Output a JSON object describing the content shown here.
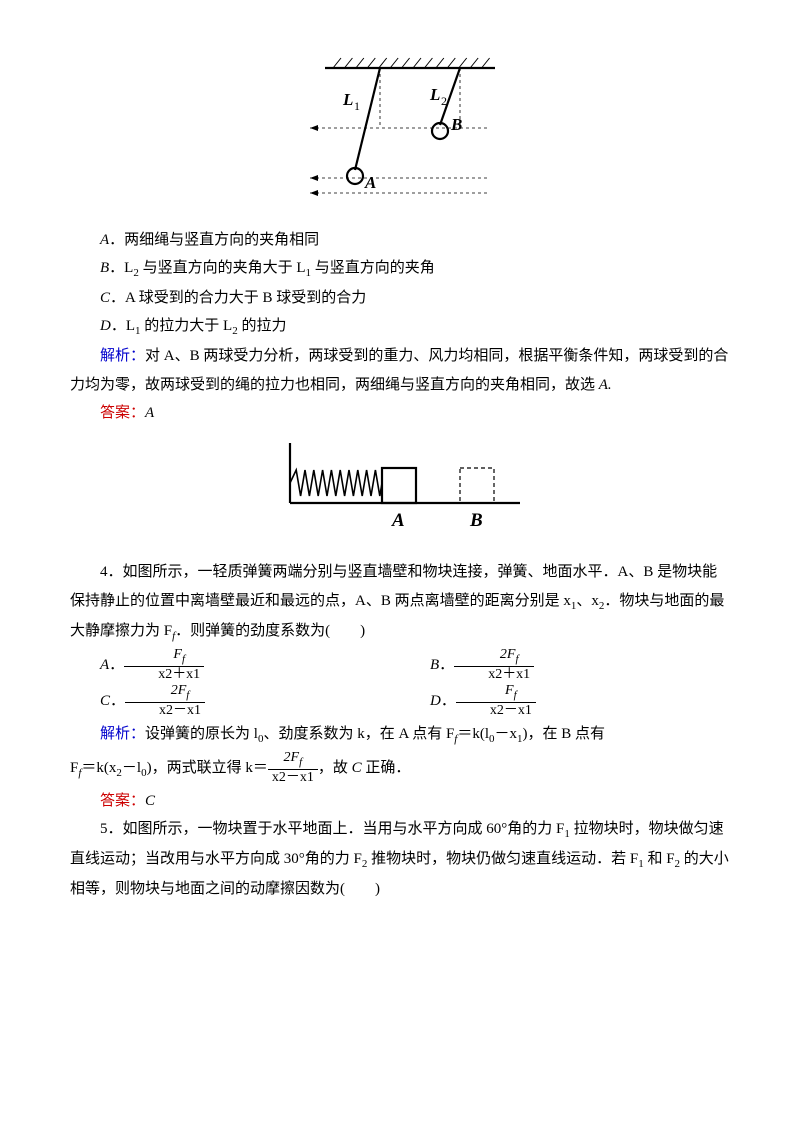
{
  "fig1": {
    "L1_label": "L",
    "L1_sub": "1",
    "L2_label": "L",
    "L2_sub": "2",
    "A_label": "A",
    "B_label": "B",
    "stroke": "#000000",
    "bold_stroke_width": 2.2,
    "thin_stroke_width": 1,
    "hatch_count": 14
  },
  "q3": {
    "optA": "．两细绳与竖直方向的夹角相同",
    "optB_p1": "．L",
    "optB_p2": " 与竖直方向的夹角大于 L",
    "optB_p3": " 与竖直方向的夹角",
    "optC": "．A 球受到的合力大于 B 球受到的合力",
    "optD_p1": "．L",
    "optD_p2": " 的拉力大于 L",
    "optD_p3": " 的拉力",
    "analysis_label": "解析：",
    "analysis_text": "对 A、B 两球受力分析，两球受到的重力、风力均相同，根据平衡条件知，两球受到的合力均为零，故两球受到的绳的拉力也相同，两细绳与竖直方向的夹角相同，故选 ",
    "analysis_ans": "A.",
    "answer_label": "答案：",
    "answer_value": "A",
    "italic_A": "A",
    "italic_B": "B",
    "italic_C": "C",
    "italic_D": "D",
    "sub1": "1",
    "sub2": "2"
  },
  "fig2": {
    "A_label": "A",
    "B_label": "B",
    "stroke": "#000000",
    "line_width": 2.2,
    "coil_count": 10
  },
  "q4": {
    "stem_p1": "4．如图所示，一轻质弹簧两端分别与竖直墙壁和物块连接，弹簧、地面水平．A、B 是物块能保持静止的位置中离墙壁最近和最远的点，A、B 两点离墙壁的距离分别是 x",
    "stem_p2": "、x",
    "stem_p3": "．物块与地面的最大静摩擦力为 F",
    "stem_p4": "．则弹簧的劲度系数为(　　)",
    "sub1": "1",
    "sub2": "2",
    "subf": "f",
    "optA_label": "A",
    "optA_num": "Ff",
    "optA_den": "x2＋x1",
    "optB_label": "B",
    "optB_num": "2Ff",
    "optB_den": "x2＋x1",
    "optC_label": "C",
    "optC_num": "2Ff",
    "optC_den": "x2－x1",
    "optD_label": "D",
    "optD_num": "Ff",
    "optD_den": "x2－x1",
    "analysis_label": "解析：",
    "analysis_p1": "设弹簧的原长为 l",
    "analysis_p2": "、劲度系数为 k，在 A 点有 F",
    "analysis_p3": "＝k(l",
    "analysis_p4": "－x",
    "analysis_p5": ")，在 B 点有",
    "analysis2_p1": "F",
    "analysis2_p2": "＝k(x",
    "analysis2_p3": "－l",
    "analysis2_p4": ")，两式联立得 k＝",
    "analysis2_p5": "，故 ",
    "analysis2_ans": " 正确．",
    "italic_C": "C",
    "sub0": "0",
    "k_num": "2Ff",
    "k_den": "x2－x1",
    "answer_label": "答案：",
    "answer_value": "C"
  },
  "q5": {
    "stem_p1": "5．如图所示，一物块置于水平地面上．当用与水平方向成 60°角的力 F",
    "stem_p2": " 拉物块时，物块做匀速直线运动；当改用与水平方向成 30°角的力 F",
    "stem_p3": " 推物块时，物块仍做匀速直线运动．若 F",
    "stem_p4": " 和 F",
    "stem_p5": " 的大小相等，则物块与地面之间的动摩擦因数为(　　)",
    "sub1": "1",
    "sub2": "2"
  }
}
